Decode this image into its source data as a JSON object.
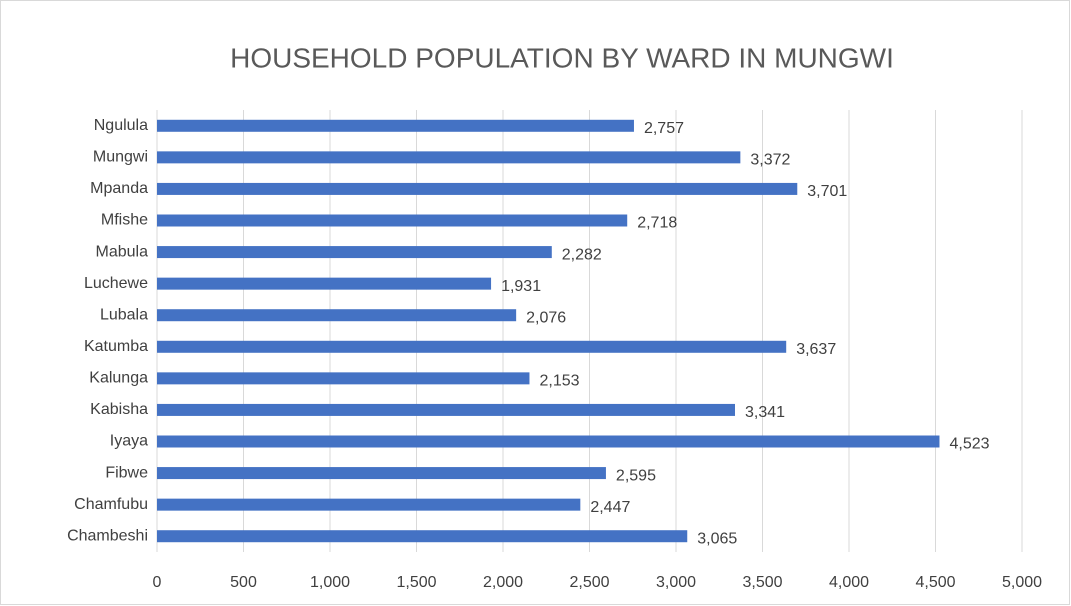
{
  "chart_data": {
    "type": "bar",
    "orientation": "horizontal",
    "title": "HOUSEHOLD POPULATION BY WARD IN MUNGWI",
    "categories": [
      "Chambeshi",
      "Chamfubu",
      "Fibwe",
      "Iyaya",
      "Kabisha",
      "Kalunga",
      "Katumba",
      "Lubala",
      "Luchewe",
      "Mabula",
      "Mfishe",
      "Mpanda",
      "Mungwi",
      "Ngulula"
    ],
    "values": [
      3065,
      2447,
      2595,
      4523,
      3341,
      2153,
      3637,
      2076,
      1931,
      2282,
      2718,
      3701,
      3372,
      2757
    ],
    "value_labels": [
      "3,065",
      "2,447",
      "2,595",
      "4,523",
      "3,341",
      "2,153",
      "3,637",
      "2,076",
      "1,931",
      "2,282",
      "2,718",
      "3,701",
      "3,372",
      "2,757"
    ],
    "color": "#4472c4",
    "xlim": [
      0,
      5000
    ],
    "xticks": [
      0,
      500,
      {
        "value": 1000,
        "label": "1,000"
      },
      {
        "value": 1500,
        "label": "1,500"
      },
      {
        "value": 2000,
        "label": "2,000"
      },
      {
        "value": 2500,
        "label": "2,500"
      },
      {
        "value": 3000,
        "label": "3,000"
      },
      {
        "value": 3500,
        "label": "3,500"
      },
      {
        "value": 4000,
        "label": "4,000"
      },
      {
        "value": 4500,
        "label": "4,500"
      },
      {
        "value": 5000,
        "label": "5,000"
      }
    ],
    "grid": true
  }
}
